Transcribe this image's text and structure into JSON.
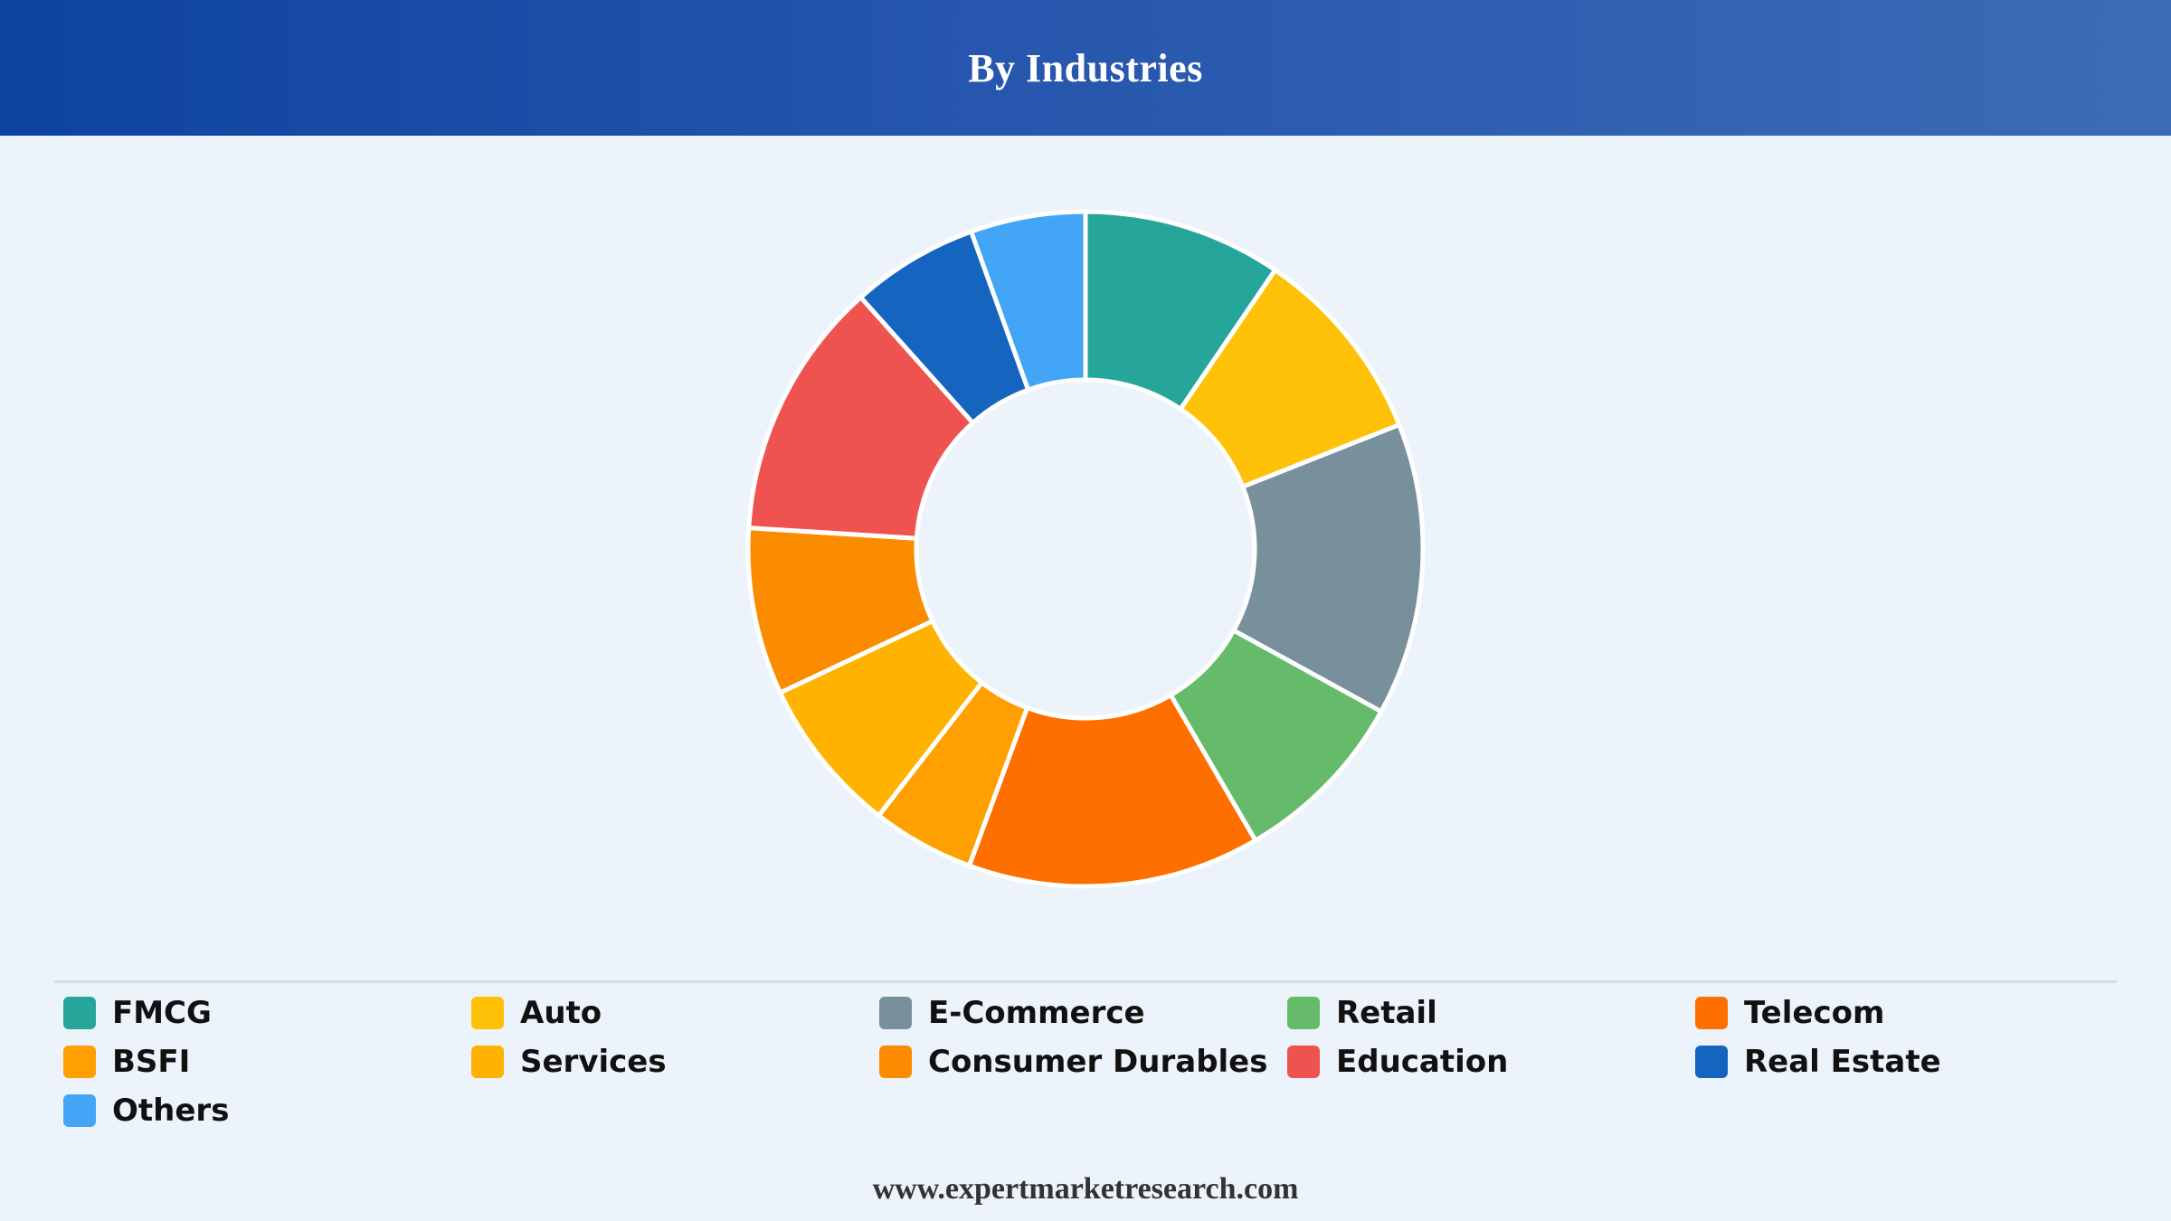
{
  "header": {
    "title": "By Industries"
  },
  "chart_data": {
    "type": "pie",
    "variant": "donut",
    "title": "By Industries",
    "start_angle_deg": 0,
    "direction": "clockwise",
    "legend_placement": "bottom",
    "slices": [
      {
        "label": "FMCG",
        "value": 9.5,
        "color": "#26a69a"
      },
      {
        "label": "Auto",
        "value": 9.5,
        "color": "#ffc107"
      },
      {
        "label": "E-Commerce",
        "value": 14.0,
        "color": "#78909c"
      },
      {
        "label": "Retail",
        "value": 8.6,
        "color": "#66bb6a"
      },
      {
        "label": "Telecom",
        "value": 14.0,
        "color": "#ff6f00"
      },
      {
        "label": "BSFI",
        "value": 4.9,
        "color": "#ffa000"
      },
      {
        "label": "Services",
        "value": 7.5,
        "color": "#ffb300"
      },
      {
        "label": "Consumer Durables",
        "value": 8.0,
        "color": "#fb8c00"
      },
      {
        "label": "Education",
        "value": 12.4,
        "color": "#ef5350"
      },
      {
        "label": "Real Estate",
        "value": 6.1,
        "color": "#1565c0"
      },
      {
        "label": "Others",
        "value": 5.5,
        "color": "#42a5f5"
      }
    ]
  },
  "footer": {
    "source": "www.expertmarketresearch.com"
  }
}
